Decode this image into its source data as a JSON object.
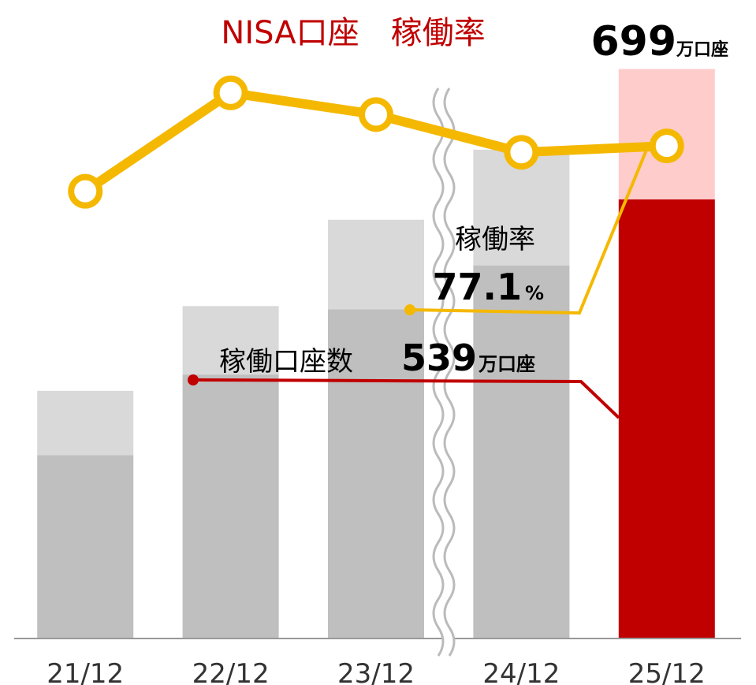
{
  "chart_data": {
    "type": "stacked-bar-line",
    "title": "NISA口座　稼働率",
    "categories": [
      "21/12",
      "22/12",
      "23/12",
      "24/12",
      "25/12"
    ],
    "ylim": [
      0,
      745
    ],
    "y2lim": [
      0,
      95
    ],
    "series": [
      {
        "name": "稼働口座数",
        "colors": [
          "#bfbfbf",
          "#bfbfbf",
          "#bfbfbf",
          "#bfbfbf",
          "#c00000"
        ],
        "values": [
          225,
          324,
          404,
          458,
          539
        ],
        "value_labels": [
          null,
          null,
          null,
          null,
          "539"
        ]
      },
      {
        "colors": [
          "#d9d9d9",
          "#d9d9d9",
          "#d9d9d9",
          "#d9d9d9",
          "#ffcccc"
        ],
        "values": [
          79,
          84,
          110,
          142,
          160
        ]
      },
      {
        "name": "稼働率",
        "color": "#f5b800",
        "axis": "y2",
        "values": [
          70.0,
          85.4,
          82.0,
          76.1,
          77.1
        ],
        "value_labels": [
          null,
          null,
          null,
          null,
          "77.1"
        ]
      }
    ],
    "annotations": {
      "total": "699",
      "total_unit": "万口座",
      "active_unit": "万口座",
      "rate_unit": "%"
    }
  }
}
